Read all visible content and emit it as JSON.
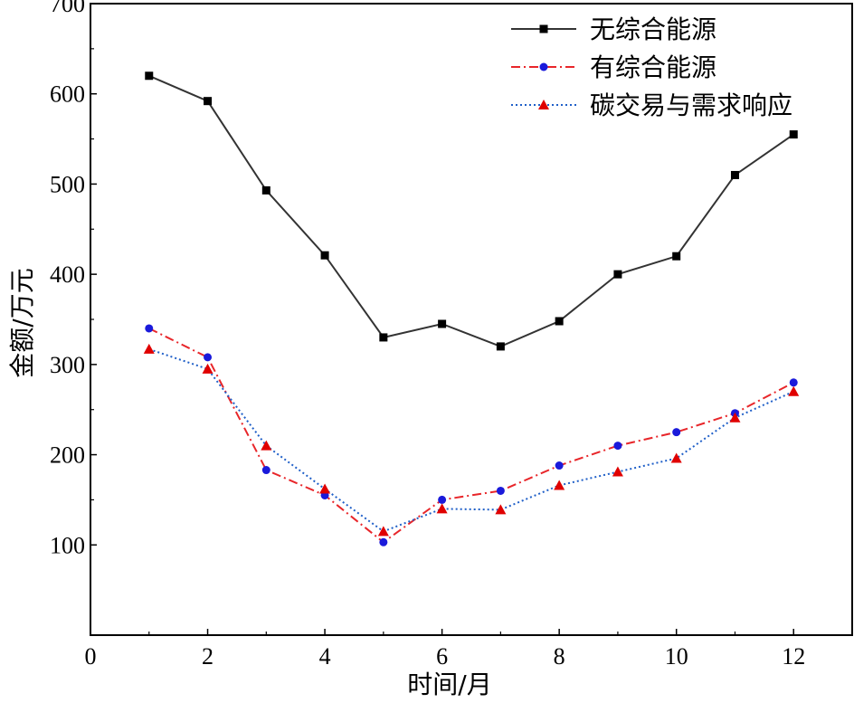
{
  "chart_data": {
    "type": "line",
    "title": "",
    "xlabel": "时间/月",
    "ylabel": "金额/万元",
    "xlim": [
      0,
      13
    ],
    "ylim": [
      0,
      700
    ],
    "x_ticks": [
      0,
      2,
      4,
      6,
      8,
      10,
      12
    ],
    "y_ticks": [
      100,
      200,
      300,
      400,
      500,
      600,
      700
    ],
    "x_tick_labels": [
      "0",
      "2",
      "4",
      "6",
      "8",
      "10",
      "12"
    ],
    "y_tick_labels": [
      "100",
      "200",
      "300",
      "400",
      "500",
      "600",
      "700"
    ],
    "legend_position": "top-right",
    "x": [
      1,
      2,
      3,
      4,
      5,
      6,
      7,
      8,
      9,
      10,
      11,
      12
    ],
    "series": [
      {
        "name": "无综合能源",
        "color": "#333333",
        "line_style": "solid",
        "marker": "square",
        "marker_color": "#000000",
        "values": [
          620,
          592,
          493,
          421,
          330,
          345,
          320,
          348,
          400,
          420,
          510,
          555
        ]
      },
      {
        "name": "有综合能源",
        "color": "#e8262a",
        "line_style": "dash-dot",
        "marker": "circle",
        "marker_color": "#1a1adb",
        "values": [
          340,
          308,
          183,
          155,
          103,
          150,
          160,
          188,
          210,
          225,
          246,
          280
        ]
      },
      {
        "name": "碳交易与需求响应",
        "color": "#1f5fc8",
        "line_style": "dotted",
        "marker": "triangle",
        "marker_color": "#e00000",
        "values": [
          317,
          295,
          210,
          162,
          115,
          140,
          139,
          166,
          181,
          196,
          241,
          270
        ]
      }
    ]
  }
}
